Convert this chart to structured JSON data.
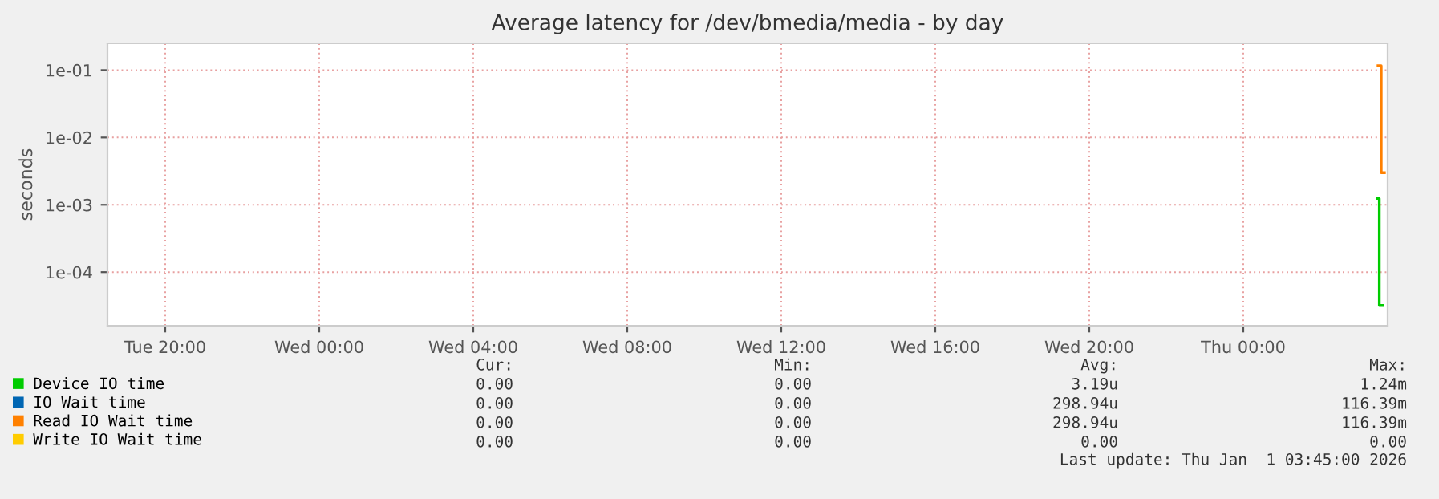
{
  "chart_data": {
    "type": "step",
    "title": "Average latency for /dev/bmedia/media - by day",
    "ylabel": "seconds",
    "log": "y",
    "grid": true,
    "legend": "bottom",
    "xlim": [
      "2025-12-30T18:30",
      "2026-01-01T03:45"
    ],
    "xticks": [
      {
        "value": "2025-12-30T20:00",
        "label": "Tue 20:00"
      },
      {
        "value": "2025-12-31T00:00",
        "label": "Wed 00:00"
      },
      {
        "value": "2025-12-31T04:00",
        "label": "Wed 04:00"
      },
      {
        "value": "2025-12-31T08:00",
        "label": "Wed 08:00"
      },
      {
        "value": "2025-12-31T12:00",
        "label": "Wed 12:00"
      },
      {
        "value": "2025-12-31T16:00",
        "label": "Wed 16:00"
      },
      {
        "value": "2025-12-31T20:00",
        "label": "Wed 20:00"
      },
      {
        "value": "2026-01-01T00:00",
        "label": "Thu 00:00"
      }
    ],
    "ylim": [
      1.6e-05,
      0.25
    ],
    "yticks": [
      {
        "value": 0.0001,
        "label": "1e-04"
      },
      {
        "value": 0.001,
        "label": "1e-03"
      },
      {
        "value": 0.01,
        "label": "1e-02"
      },
      {
        "value": 0.1,
        "label": "1e-01"
      }
    ],
    "series": [
      {
        "name": "Device IO time",
        "color": "#00cc00",
        "x": [
          "2026-01-01T03:29",
          "2026-01-01T03:32",
          "2026-01-01T03:37"
        ],
        "values": [
          0.00124,
          3.2e-05,
          3.2e-05
        ]
      },
      {
        "name": "IO Wait time",
        "color": "#0066b3"
      },
      {
        "name": "Read IO Wait time",
        "color": "#ff8000",
        "x": [
          "2026-01-01T03:30",
          "2026-01-01T03:35",
          "2026-01-01T03:40"
        ],
        "values": [
          0.116,
          0.003,
          0.003
        ]
      },
      {
        "name": "Write IO Wait time",
        "color": "#ffcc00"
      }
    ],
    "annotations": [
      "Cur:",
      "Min:",
      "Avg:",
      "Max:",
      "0.00",
      "0.00",
      "3.19u",
      "1.24m",
      "0.00",
      "0.00",
      "298.94u",
      "116.39m",
      "0.00",
      "0.00",
      "298.94u",
      "116.39m",
      "0.00",
      "0.00",
      "0.00",
      "0.00",
      "Last update: Thu Jan  1 03:45:00 2026"
    ]
  }
}
